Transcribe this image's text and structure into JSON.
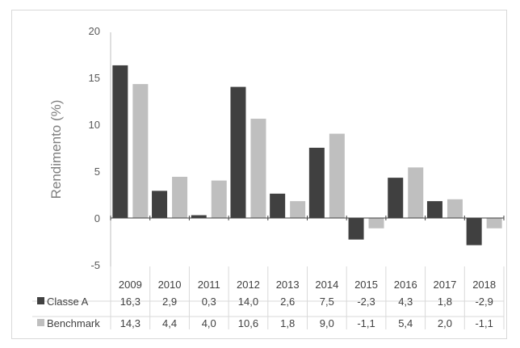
{
  "chart_data": {
    "type": "bar",
    "title": "",
    "xlabel": "",
    "ylabel": "Rendimento (%)",
    "ylim": [
      -5,
      20
    ],
    "yticks": [
      "-5",
      "0",
      "5",
      "10",
      "15",
      "20"
    ],
    "grid": false,
    "legend": "data-table-left",
    "categories": [
      "2009",
      "2010",
      "2011",
      "2012",
      "2013",
      "2014",
      "2015",
      "2016",
      "2017",
      "2018"
    ],
    "series": [
      {
        "name": "Classe A",
        "color": "#404040",
        "values": [
          16.3,
          2.9,
          0.3,
          14.0,
          2.6,
          7.5,
          -2.3,
          4.3,
          1.8,
          -2.9
        ],
        "labels": [
          "16,3",
          "2,9",
          "0,3",
          "14,0",
          "2,6",
          "7,5",
          "-2,3",
          "4,3",
          "1,8",
          "-2,9"
        ]
      },
      {
        "name": "Benchmark",
        "color": "#bfbfbf",
        "values": [
          14.3,
          4.4,
          4.0,
          10.6,
          1.8,
          9.0,
          -1.1,
          5.4,
          2.0,
          -1.1
        ],
        "labels": [
          "14,3",
          "4,4",
          "4,0",
          "10,6",
          "1,8",
          "9,0",
          "-1,1",
          "5,4",
          "2,0",
          "-1,1"
        ]
      }
    ]
  }
}
